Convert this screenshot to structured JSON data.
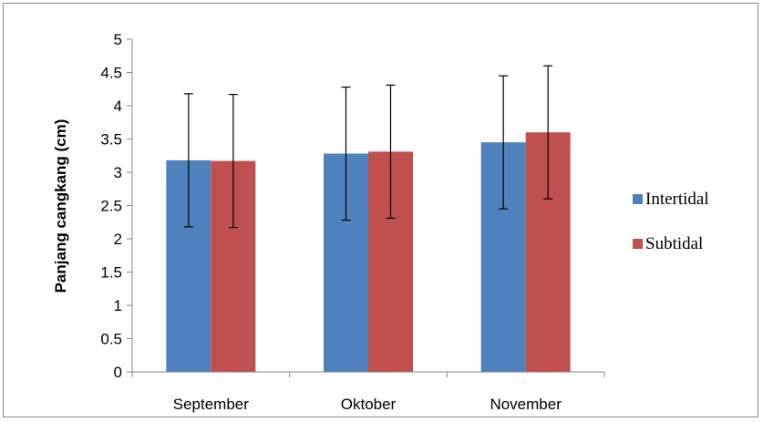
{
  "chart_data": {
    "type": "bar",
    "title": "",
    "xlabel": "",
    "ylabel": "Panjang cangkang (cm)",
    "ylim": [
      0,
      5
    ],
    "yticks": [
      "0",
      "0.5",
      "1",
      "1.5",
      "2",
      "2.5",
      "3",
      "3.5",
      "4",
      "4.5",
      "5"
    ],
    "grid": false,
    "legend_position": "right",
    "categories": [
      "September",
      "Oktober",
      "November"
    ],
    "series": [
      {
        "name": "Intertidal",
        "color": "#4f81bd",
        "values": [
          3.18,
          3.28,
          3.45
        ],
        "error": [
          1.0,
          1.0,
          1.0
        ]
      },
      {
        "name": "Subtidal",
        "color": "#c0504d",
        "values": [
          3.17,
          3.31,
          3.6
        ],
        "error": [
          1.0,
          1.0,
          1.0
        ]
      }
    ]
  }
}
